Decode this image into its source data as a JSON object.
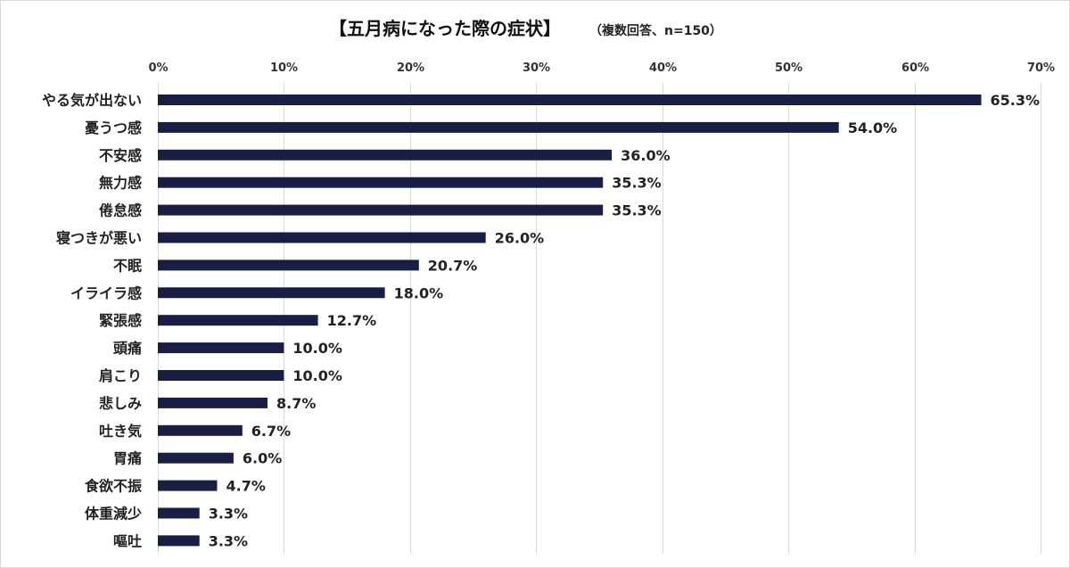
{
  "chart_data": {
    "type": "bar",
    "orientation": "horizontal",
    "title": "【五月病になった際の症状】",
    "subtitle": "（複数回答、n=150）",
    "categories": [
      "やる気が出ない",
      "憂うつ感",
      "不安感",
      "無力感",
      "倦怠感",
      "寝つきが悪い",
      "不眠",
      "イライラ感",
      "緊張感",
      "頭痛",
      "肩こり",
      "悲しみ",
      "吐き気",
      "胃痛",
      "食欲不振",
      "体重減少",
      "嘔吐"
    ],
    "values": [
      65.3,
      54.0,
      36.0,
      35.3,
      35.3,
      26.0,
      20.7,
      18.0,
      12.7,
      10.0,
      10.0,
      8.7,
      6.7,
      6.0,
      4.7,
      3.3,
      3.3
    ],
    "value_labels": [
      "65.3%",
      "54.0%",
      "36.0%",
      "35.3%",
      "35.3%",
      "26.0%",
      "20.7%",
      "18.0%",
      "12.7%",
      "10.0%",
      "10.0%",
      "8.7%",
      "6.7%",
      "6.0%",
      "4.7%",
      "3.3%",
      "3.3%"
    ],
    "xticks": [
      0,
      10,
      20,
      30,
      40,
      50,
      60,
      70
    ],
    "xtick_labels": [
      "0%",
      "10%",
      "20%",
      "30%",
      "40%",
      "50%",
      "60%",
      "70%"
    ],
    "xlim": [
      0,
      70
    ],
    "xlabel": "",
    "ylabel": "",
    "grid": true,
    "legend": false,
    "colors": {
      "bar": "#1b1e43",
      "grid": "#d9d9d9",
      "text": "#222222"
    }
  }
}
